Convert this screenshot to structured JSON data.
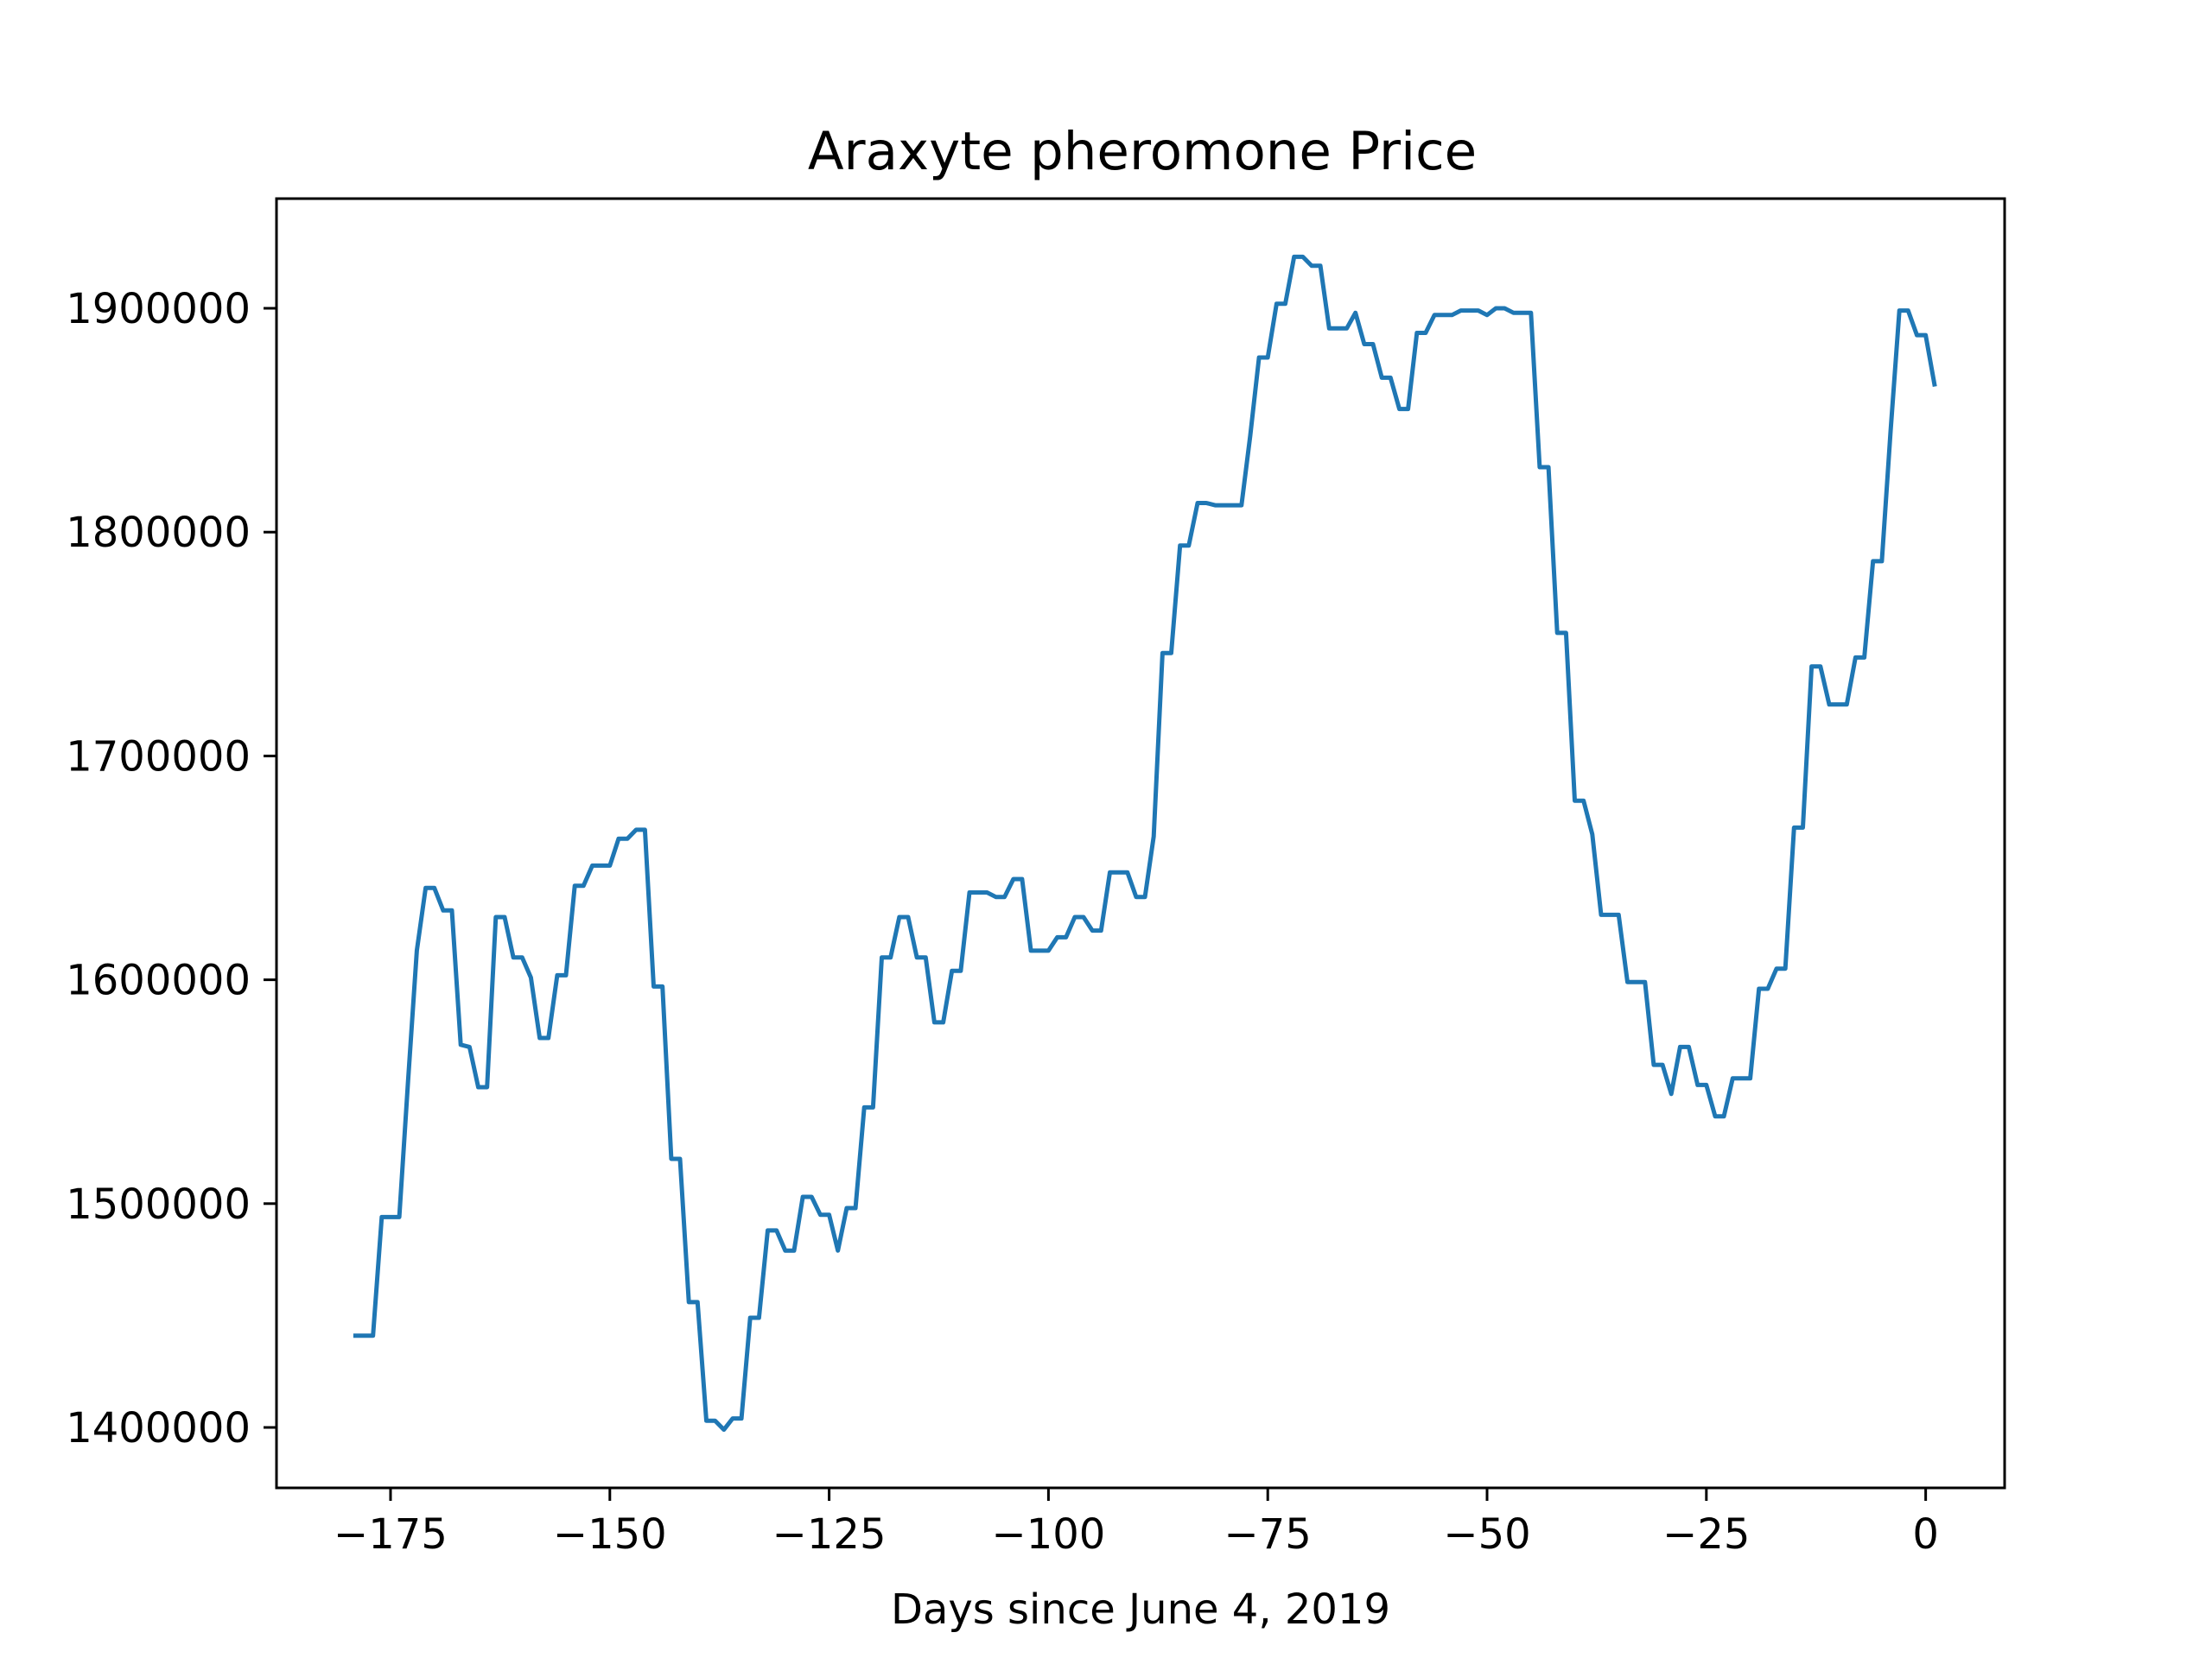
{
  "chart_data": {
    "type": "line",
    "title": "Araxyte pheromone Price",
    "xlabel": "Days since June 4, 2019",
    "ylabel": "",
    "xlim": [
      -188,
      9
    ],
    "ylim": [
      1373000,
      1949000
    ],
    "xticks": [
      {
        "value": -175,
        "label": "−175"
      },
      {
        "value": -150,
        "label": "−150"
      },
      {
        "value": -125,
        "label": "−125"
      },
      {
        "value": -100,
        "label": "−100"
      },
      {
        "value": -75,
        "label": "−75"
      },
      {
        "value": -50,
        "label": "−50"
      },
      {
        "value": -25,
        "label": "−25"
      },
      {
        "value": 0,
        "label": "0"
      }
    ],
    "yticks": [
      {
        "value": 1400000,
        "label": "1400000"
      },
      {
        "value": 1500000,
        "label": "1500000"
      },
      {
        "value": 1600000,
        "label": "1600000"
      },
      {
        "value": 1700000,
        "label": "1700000"
      },
      {
        "value": 1800000,
        "label": "1800000"
      },
      {
        "value": 1900000,
        "label": "1900000"
      }
    ],
    "grid": false,
    "colors": {
      "line": "#1f77b4"
    },
    "series": [
      {
        "points": [
          [
            -179,
            1441000
          ],
          [
            -178,
            1441000
          ],
          [
            -177,
            1441000
          ],
          [
            -176,
            1494000
          ],
          [
            -175,
            1494000
          ],
          [
            -174,
            1494000
          ],
          [
            -173,
            1555000
          ],
          [
            -172,
            1613000
          ],
          [
            -171,
            1641000
          ],
          [
            -170,
            1641000
          ],
          [
            -169,
            1631000
          ],
          [
            -168,
            1631000
          ],
          [
            -167,
            1571000
          ],
          [
            -166,
            1570000
          ],
          [
            -165,
            1552000
          ],
          [
            -164,
            1552000
          ],
          [
            -163,
            1628000
          ],
          [
            -162,
            1628000
          ],
          [
            -161,
            1610000
          ],
          [
            -160,
            1610000
          ],
          [
            -159,
            1601000
          ],
          [
            -158,
            1574000
          ],
          [
            -157,
            1574000
          ],
          [
            -156,
            1602000
          ],
          [
            -155,
            1602000
          ],
          [
            -154,
            1642000
          ],
          [
            -153,
            1642000
          ],
          [
            -152,
            1651000
          ],
          [
            -151,
            1651000
          ],
          [
            -150,
            1651000
          ],
          [
            -149,
            1663000
          ],
          [
            -148,
            1663000
          ],
          [
            -147,
            1667000
          ],
          [
            -146,
            1667000
          ],
          [
            -145,
            1597000
          ],
          [
            -144,
            1597000
          ],
          [
            -143,
            1520000
          ],
          [
            -142,
            1520000
          ],
          [
            -141,
            1456000
          ],
          [
            -140,
            1456000
          ],
          [
            -139,
            1403000
          ],
          [
            -138,
            1403000
          ],
          [
            -137,
            1399000
          ],
          [
            -136,
            1404000
          ],
          [
            -135,
            1404000
          ],
          [
            -134,
            1449000
          ],
          [
            -133,
            1449000
          ],
          [
            -132,
            1488000
          ],
          [
            -131,
            1488000
          ],
          [
            -130,
            1479000
          ],
          [
            -129,
            1479000
          ],
          [
            -128,
            1503000
          ],
          [
            -127,
            1503000
          ],
          [
            -126,
            1495000
          ],
          [
            -125,
            1495000
          ],
          [
            -124,
            1479000
          ],
          [
            -123,
            1498000
          ],
          [
            -122,
            1498000
          ],
          [
            -121,
            1543000
          ],
          [
            -120,
            1543000
          ],
          [
            -119,
            1610000
          ],
          [
            -118,
            1610000
          ],
          [
            -117,
            1628000
          ],
          [
            -116,
            1628000
          ],
          [
            -115,
            1610000
          ],
          [
            -114,
            1610000
          ],
          [
            -113,
            1581000
          ],
          [
            -112,
            1581000
          ],
          [
            -111,
            1604000
          ],
          [
            -110,
            1604000
          ],
          [
            -109,
            1639000
          ],
          [
            -108,
            1639000
          ],
          [
            -107,
            1639000
          ],
          [
            -106,
            1637000
          ],
          [
            -105,
            1637000
          ],
          [
            -104,
            1645000
          ],
          [
            -103,
            1645000
          ],
          [
            -102,
            1613000
          ],
          [
            -101,
            1613000
          ],
          [
            -100,
            1613000
          ],
          [
            -99,
            1619000
          ],
          [
            -98,
            1619000
          ],
          [
            -97,
            1628000
          ],
          [
            -96,
            1628000
          ],
          [
            -95,
            1622000
          ],
          [
            -94,
            1622000
          ],
          [
            -93,
            1648000
          ],
          [
            -92,
            1648000
          ],
          [
            -91,
            1648000
          ],
          [
            -90,
            1637000
          ],
          [
            -89,
            1637000
          ],
          [
            -88,
            1664000
          ],
          [
            -87,
            1746000
          ],
          [
            -86,
            1746000
          ],
          [
            -85,
            1794000
          ],
          [
            -84,
            1794000
          ],
          [
            -83,
            1813000
          ],
          [
            -82,
            1813000
          ],
          [
            -81,
            1812000
          ],
          [
            -80,
            1812000
          ],
          [
            -79,
            1812000
          ],
          [
            -78,
            1812000
          ],
          [
            -77,
            1843000
          ],
          [
            -76,
            1878000
          ],
          [
            -75,
            1878000
          ],
          [
            -74,
            1902000
          ],
          [
            -73,
            1902000
          ],
          [
            -72,
            1923000
          ],
          [
            -71,
            1923000
          ],
          [
            -70,
            1919000
          ],
          [
            -69,
            1919000
          ],
          [
            -68,
            1891000
          ],
          [
            -67,
            1891000
          ],
          [
            -66,
            1891000
          ],
          [
            -65,
            1898000
          ],
          [
            -64,
            1884000
          ],
          [
            -63,
            1884000
          ],
          [
            -62,
            1869000
          ],
          [
            -61,
            1869000
          ],
          [
            -60,
            1855000
          ],
          [
            -59,
            1855000
          ],
          [
            -58,
            1889000
          ],
          [
            -57,
            1889000
          ],
          [
            -56,
            1897000
          ],
          [
            -55,
            1897000
          ],
          [
            -54,
            1897000
          ],
          [
            -53,
            1899000
          ],
          [
            -52,
            1899000
          ],
          [
            -51,
            1899000
          ],
          [
            -50,
            1897000
          ],
          [
            -49,
            1900000
          ],
          [
            -48,
            1900000
          ],
          [
            -47,
            1898000
          ],
          [
            -46,
            1898000
          ],
          [
            -45,
            1898000
          ],
          [
            -44,
            1829000
          ],
          [
            -43,
            1829000
          ],
          [
            -42,
            1755000
          ],
          [
            -41,
            1755000
          ],
          [
            -40,
            1680000
          ],
          [
            -39,
            1680000
          ],
          [
            -38,
            1665000
          ],
          [
            -37,
            1629000
          ],
          [
            -36,
            1629000
          ],
          [
            -35,
            1629000
          ],
          [
            -34,
            1599000
          ],
          [
            -33,
            1599000
          ],
          [
            -32,
            1599000
          ],
          [
            -31,
            1562000
          ],
          [
            -30,
            1562000
          ],
          [
            -29,
            1549000
          ],
          [
            -28,
            1570000
          ],
          [
            -27,
            1570000
          ],
          [
            -26,
            1553000
          ],
          [
            -25,
            1553000
          ],
          [
            -24,
            1539000
          ],
          [
            -23,
            1539000
          ],
          [
            -22,
            1556000
          ],
          [
            -21,
            1556000
          ],
          [
            -20,
            1556000
          ],
          [
            -19,
            1596000
          ],
          [
            -18,
            1596000
          ],
          [
            -17,
            1605000
          ],
          [
            -16,
            1605000
          ],
          [
            -15,
            1668000
          ],
          [
            -14,
            1668000
          ],
          [
            -13,
            1740000
          ],
          [
            -12,
            1740000
          ],
          [
            -11,
            1723000
          ],
          [
            -10,
            1723000
          ],
          [
            -9,
            1723000
          ],
          [
            -8,
            1744000
          ],
          [
            -7,
            1744000
          ],
          [
            -6,
            1787000
          ],
          [
            -5,
            1787000
          ],
          [
            -4,
            1845000
          ],
          [
            -3,
            1899000
          ],
          [
            -2,
            1899000
          ],
          [
            -1,
            1888000
          ],
          [
            0,
            1888000
          ],
          [
            1,
            1866000
          ]
        ]
      }
    ]
  }
}
